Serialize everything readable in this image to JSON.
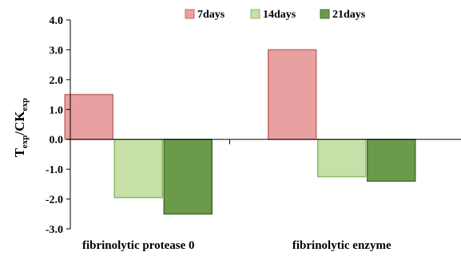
{
  "chart_data": {
    "type": "bar",
    "title": "",
    "xlabel": "",
    "ylabel": {
      "base1": "T",
      "sub1": "exp",
      "mid": "/CK",
      "sub2": "exp"
    },
    "ylim": [
      -3.0,
      4.0
    ],
    "yticks": [
      4.0,
      3.0,
      2.0,
      1.0,
      0.0,
      -1.0,
      -2.0,
      -3.0
    ],
    "categories": [
      "fibrinolytic protease 0",
      "fibrinolytic enzyme"
    ],
    "series": [
      {
        "name": "7days",
        "values": [
          1.5,
          3.0
        ],
        "color": "#e8a0a0",
        "edge": "#c46a6a"
      },
      {
        "name": "14days",
        "values": [
          -1.95,
          -1.25
        ],
        "color": "#c6e0a8",
        "edge": "#8fb86a"
      },
      {
        "name": "21days",
        "values": [
          -2.5,
          -1.4
        ],
        "color": "#6a9a4a",
        "edge": "#44702c"
      }
    ],
    "legend": "top-right",
    "grid": false
  }
}
